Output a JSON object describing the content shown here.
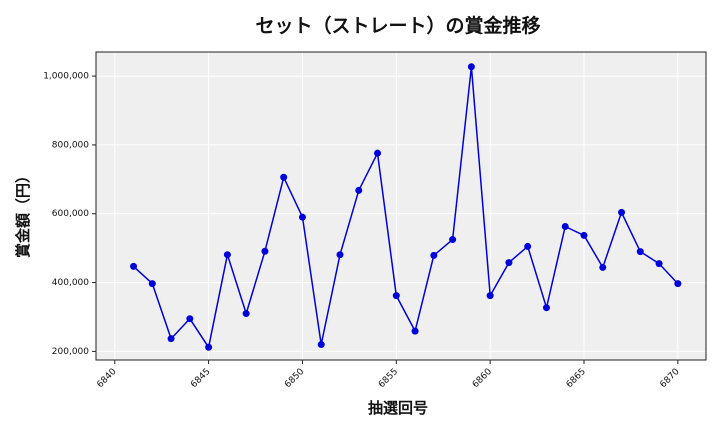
{
  "chart_data": {
    "type": "line",
    "title": "セット（ストレート）の賞金推移",
    "xlabel": "抽選回号",
    "ylabel": "賞金額（円）",
    "xlim": [
      6839.0,
      6871.5
    ],
    "ylim": [
      175000,
      1070000
    ],
    "xticks": [
      6840,
      6845,
      6850,
      6855,
      6860,
      6865,
      6870
    ],
    "yticks": [
      200000,
      400000,
      600000,
      800000,
      1000000
    ],
    "xtick_labels": [
      "6840",
      "6845",
      "6850",
      "6855",
      "6860",
      "6865",
      "6870"
    ],
    "ytick_labels": [
      "200,000",
      "400,000",
      "600,000",
      "800,000",
      "1,000,000"
    ],
    "grid": true,
    "series": [
      {
        "color": "#0000dd",
        "x": [
          6841,
          6842,
          6843,
          6844,
          6845,
          6846,
          6847,
          6848,
          6849,
          6850,
          6851,
          6852,
          6853,
          6854,
          6855,
          6856,
          6857,
          6858,
          6859,
          6860,
          6861,
          6862,
          6863,
          6864,
          6865,
          6866,
          6867,
          6868,
          6869,
          6870
        ],
        "y": [
          447000,
          397000,
          237000,
          295000,
          212000,
          481000,
          310000,
          491000,
          706000,
          590000,
          220000,
          481000,
          668000,
          776000,
          362000,
          259000,
          479000,
          525000,
          1027000,
          362000,
          458000,
          505000,
          327000,
          563000,
          537000,
          444000,
          604000,
          490000,
          455000,
          397000
        ]
      }
    ]
  }
}
